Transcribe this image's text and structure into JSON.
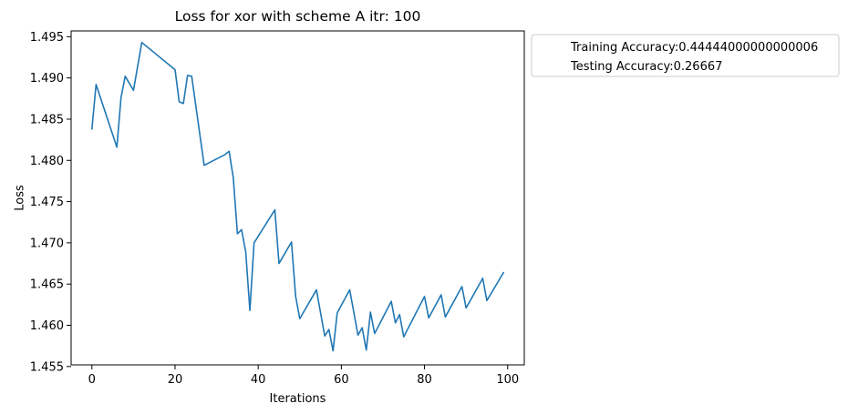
{
  "chart_data": {
    "type": "line",
    "title": "Loss for xor with scheme A itr: 100",
    "xlabel": "Iterations",
    "ylabel": "Loss",
    "xlim": [
      -5,
      104
    ],
    "ylim": [
      1.4552,
      1.4957
    ],
    "x_ticks": [
      0,
      20,
      40,
      60,
      80,
      100
    ],
    "x_tick_labels": [
      "0",
      "20",
      "40",
      "60",
      "80",
      "100"
    ],
    "y_ticks": [
      1.455,
      1.46,
      1.465,
      1.47,
      1.475,
      1.48,
      1.485,
      1.49,
      1.495
    ],
    "y_tick_labels": [
      "1.455",
      "1.460",
      "1.465",
      "1.470",
      "1.475",
      "1.480",
      "1.485",
      "1.490",
      "1.495"
    ],
    "grid": false,
    "legend": {
      "placement": "outside-upper-right",
      "entries": [
        "Training Accuracy:0.44444000000000006",
        "Testing Accuracy:0.26667"
      ]
    },
    "series": [
      {
        "color": "#1f77b4",
        "x": [
          0,
          1,
          6,
          7,
          8,
          10,
          12,
          20,
          21,
          22,
          23,
          24,
          27,
          32,
          33,
          34,
          35,
          36,
          37,
          38,
          39,
          44,
          45,
          48,
          49,
          50,
          54,
          56,
          57,
          58,
          59,
          62,
          64,
          65,
          66,
          67,
          68,
          72,
          73,
          74,
          75,
          80,
          81,
          84,
          85,
          89,
          90,
          94,
          95,
          99
        ],
        "y": [
          1.4838,
          1.4892,
          1.4816,
          1.4876,
          1.4902,
          1.4885,
          1.4943,
          1.491,
          1.4871,
          1.4869,
          1.4903,
          1.4902,
          1.4794,
          1.4807,
          1.4811,
          1.4779,
          1.4711,
          1.4716,
          1.4689,
          1.4618,
          1.47,
          1.474,
          1.4675,
          1.4701,
          1.4635,
          1.4608,
          1.4643,
          1.4587,
          1.4595,
          1.4569,
          1.4615,
          1.4643,
          1.4588,
          1.4597,
          1.457,
          1.4616,
          1.459,
          1.4629,
          1.4603,
          1.4613,
          1.4586,
          1.4635,
          1.4609,
          1.4637,
          1.461,
          1.4647,
          1.4621,
          1.4657,
          1.463,
          1.4664
        ]
      }
    ]
  }
}
